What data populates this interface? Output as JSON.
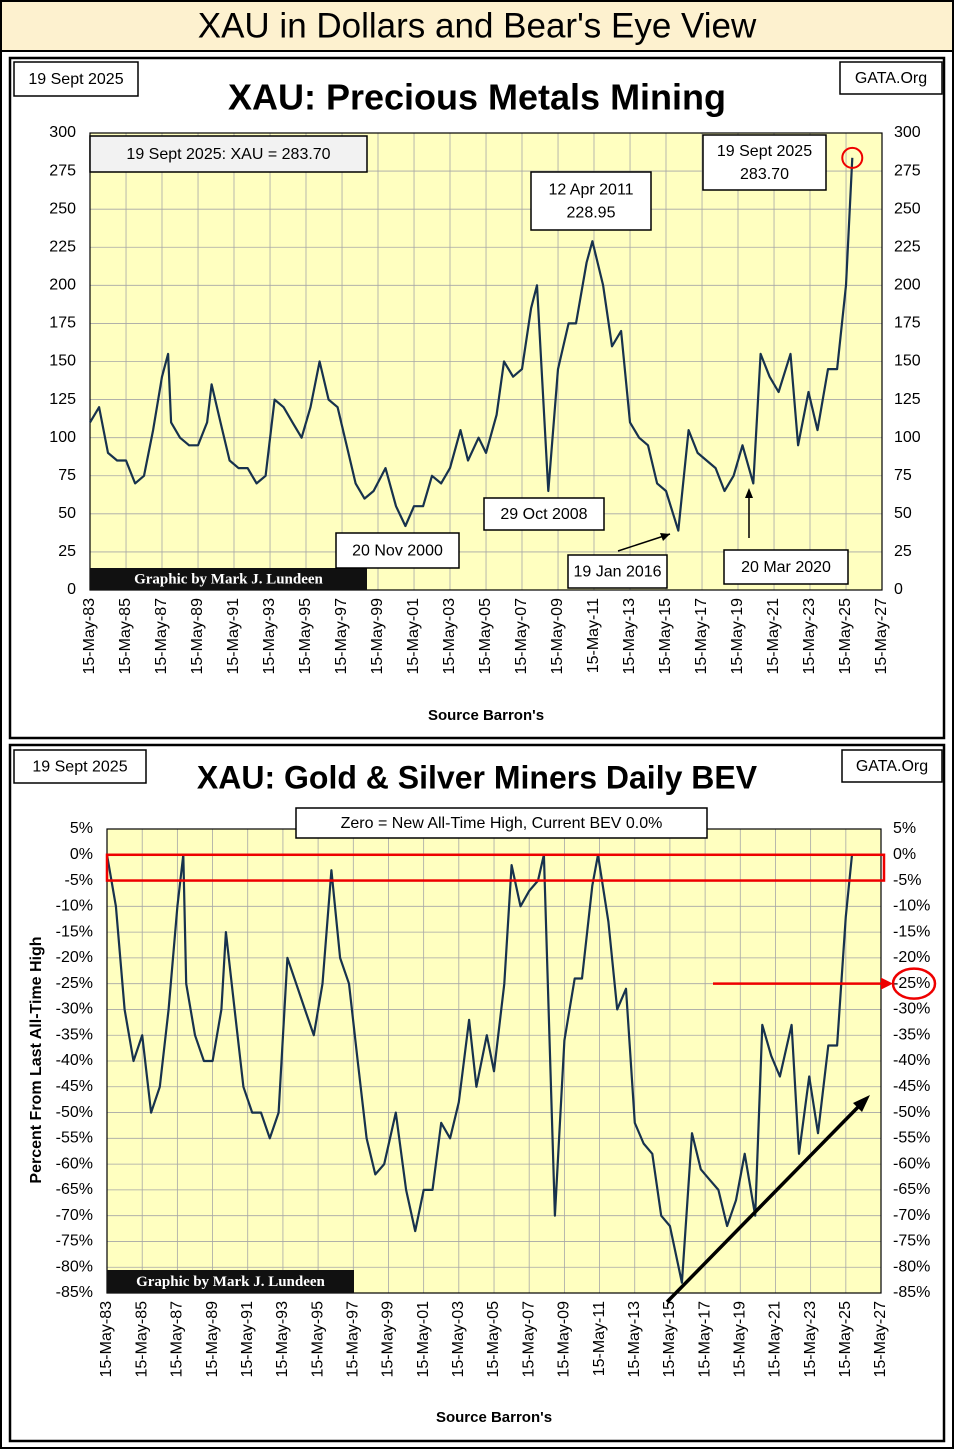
{
  "title": "XAU in Dollars and Bear's Eye View",
  "chart_data": [
    {
      "type": "line",
      "date": "19 Sept 2025",
      "site": "GATA.Org",
      "title": "XAU: Precious Metals Mining",
      "credit": "Graphic by Mark J. Lundeen",
      "x_label": "Source Barron's",
      "color": "#17324d",
      "grid": true,
      "annotations": [
        [
          "19 Sept 2025: XAU = 283.70"
        ],
        [
          "19 Sept 2025",
          "283.70"
        ],
        [
          "12 Apr 2011",
          "228.95"
        ],
        [
          "29 Oct 2008"
        ],
        [
          "20 Nov 2000"
        ],
        [
          "19 Jan 2016"
        ],
        [
          "20 Mar 2020"
        ]
      ],
      "xlim": [
        "1983-05-15",
        "2027-05-15"
      ],
      "xticks": [
        {
          "value": "1983-05-15",
          "label": "15-May-83"
        },
        {
          "value": "1985-05-15",
          "label": "15-May-85"
        },
        {
          "value": "1987-05-15",
          "label": "15-May-87"
        },
        {
          "value": "1989-05-15",
          "label": "15-May-89"
        },
        {
          "value": "1991-05-15",
          "label": "15-May-91"
        },
        {
          "value": "1993-05-15",
          "label": "15-May-93"
        },
        {
          "value": "1995-05-15",
          "label": "15-May-95"
        },
        {
          "value": "1997-05-15",
          "label": "15-May-97"
        },
        {
          "value": "1999-05-15",
          "label": "15-May-99"
        },
        {
          "value": "2001-05-15",
          "label": "15-May-01"
        },
        {
          "value": "2003-05-15",
          "label": "15-May-03"
        },
        {
          "value": "2005-05-15",
          "label": "15-May-05"
        },
        {
          "value": "2007-05-15",
          "label": "15-May-07"
        },
        {
          "value": "2009-05-15",
          "label": "15-May-09"
        },
        {
          "value": "2011-05-15",
          "label": "15-May-11"
        },
        {
          "value": "2013-05-15",
          "label": "15-May-13"
        },
        {
          "value": "2015-05-15",
          "label": "15-May-15"
        },
        {
          "value": "2017-05-15",
          "label": "15-May-17"
        },
        {
          "value": "2019-05-15",
          "label": "15-May-19"
        },
        {
          "value": "2021-05-15",
          "label": "15-May-21"
        },
        {
          "value": "2023-05-15",
          "label": "15-May-23"
        },
        {
          "value": "2025-05-15",
          "label": "15-May-25"
        },
        {
          "value": "2027-05-15",
          "label": "15-May-27"
        }
      ],
      "ylim": [
        0,
        300
      ],
      "yticks": [
        0,
        25,
        50,
        75,
        100,
        125,
        150,
        175,
        200,
        225,
        250,
        275,
        300
      ],
      "x": [
        "1983-05-15",
        "1983-11-15",
        "1984-05-15",
        "1984-11-15",
        "1985-05-15",
        "1985-11-15",
        "1986-05-15",
        "1986-11-15",
        "1987-05-15",
        "1987-09-15",
        "1987-11-15",
        "1988-05-15",
        "1988-11-15",
        "1989-05-15",
        "1989-11-15",
        "1990-02-15",
        "1990-08-15",
        "1991-02-15",
        "1991-08-15",
        "1992-02-15",
        "1992-08-15",
        "1993-02-15",
        "1993-08-15",
        "1994-02-15",
        "1994-08-15",
        "1995-02-15",
        "1995-08-15",
        "1996-02-15",
        "1996-08-15",
        "1997-02-15",
        "1997-08-15",
        "1998-02-15",
        "1998-08-15",
        "1999-02-15",
        "1999-10-15",
        "2000-05-15",
        "2000-11-20",
        "2001-05-15",
        "2001-11-15",
        "2002-05-15",
        "2002-11-15",
        "2003-05-15",
        "2003-12-15",
        "2004-05-15",
        "2004-12-15",
        "2005-05-15",
        "2005-12-15",
        "2006-05-15",
        "2006-11-15",
        "2007-05-15",
        "2007-11-15",
        "2008-03-15",
        "2008-10-29",
        "2009-05-15",
        "2009-12-15",
        "2010-05-15",
        "2010-12-15",
        "2011-04-12",
        "2011-11-15",
        "2012-05-15",
        "2012-11-15",
        "2013-05-15",
        "2013-11-15",
        "2014-05-15",
        "2014-11-15",
        "2015-05-15",
        "2016-01-19",
        "2016-08-15",
        "2017-02-15",
        "2017-08-15",
        "2018-02-15",
        "2018-08-15",
        "2019-02-15",
        "2019-08-15",
        "2020-03-20",
        "2020-08-15",
        "2021-02-15",
        "2021-08-15",
        "2022-04-15",
        "2022-09-15",
        "2023-04-15",
        "2023-10-15",
        "2024-05-15",
        "2024-11-15",
        "2025-05-15",
        "2025-09-19"
      ],
      "values": [
        110,
        120,
        90,
        85,
        85,
        70,
        75,
        105,
        140,
        155,
        110,
        100,
        95,
        95,
        110,
        135,
        110,
        85,
        80,
        80,
        70,
        75,
        125,
        120,
        110,
        100,
        120,
        150,
        125,
        120,
        95,
        70,
        60,
        65,
        80,
        55,
        42,
        55,
        55,
        75,
        70,
        80,
        105,
        85,
        100,
        90,
        115,
        150,
        140,
        145,
        185,
        200,
        65,
        145,
        175,
        175,
        215,
        228.95,
        200,
        160,
        170,
        110,
        100,
        95,
        70,
        65,
        39,
        105,
        90,
        85,
        80,
        65,
        75,
        95,
        70,
        155,
        140,
        130,
        155,
        95,
        130,
        105,
        145,
        145,
        200,
        283.7
      ]
    },
    {
      "type": "line",
      "date": "19 Sept 2025",
      "site": "GATA.Org",
      "title": "XAU: Gold & Silver Miners Daily BEV",
      "credit": "Graphic by Mark J. Lundeen",
      "x_label": "Source Barron's",
      "y_label": "Percent From Last All-Time High",
      "color": "#17324d",
      "grid": true,
      "annotations": [
        [
          "Zero = New All-Time High, Current BEV  0.0%"
        ]
      ],
      "xlim": [
        "1983-05-15",
        "2027-05-15"
      ],
      "xticks": [
        {
          "value": "1983-05-15",
          "label": "15-May-83"
        },
        {
          "value": "1985-05-15",
          "label": "15-May-85"
        },
        {
          "value": "1987-05-15",
          "label": "15-May-87"
        },
        {
          "value": "1989-05-15",
          "label": "15-May-89"
        },
        {
          "value": "1991-05-15",
          "label": "15-May-91"
        },
        {
          "value": "1993-05-15",
          "label": "15-May-93"
        },
        {
          "value": "1995-05-15",
          "label": "15-May-95"
        },
        {
          "value": "1997-05-15",
          "label": "15-May-97"
        },
        {
          "value": "1999-05-15",
          "label": "15-May-99"
        },
        {
          "value": "2001-05-15",
          "label": "15-May-01"
        },
        {
          "value": "2003-05-15",
          "label": "15-May-03"
        },
        {
          "value": "2005-05-15",
          "label": "15-May-05"
        },
        {
          "value": "2007-05-15",
          "label": "15-May-07"
        },
        {
          "value": "2009-05-15",
          "label": "15-May-09"
        },
        {
          "value": "2011-05-15",
          "label": "15-May-11"
        },
        {
          "value": "2013-05-15",
          "label": "15-May-13"
        },
        {
          "value": "2015-05-15",
          "label": "15-May-15"
        },
        {
          "value": "2017-05-15",
          "label": "15-May-17"
        },
        {
          "value": "2019-05-15",
          "label": "15-May-19"
        },
        {
          "value": "2021-05-15",
          "label": "15-May-21"
        },
        {
          "value": "2023-05-15",
          "label": "15-May-23"
        },
        {
          "value": "2025-05-15",
          "label": "15-May-25"
        },
        {
          "value": "2027-05-15",
          "label": "15-May-27"
        }
      ],
      "ylim": [
        -85,
        5
      ],
      "yticks": [
        {
          "value": 5,
          "label": "5%"
        },
        {
          "value": 0,
          "label": "0%"
        },
        {
          "value": -5,
          "label": "-5%"
        },
        {
          "value": -10,
          "label": "-10%"
        },
        {
          "value": -15,
          "label": "-15%"
        },
        {
          "value": -20,
          "label": "-20%"
        },
        {
          "value": -25,
          "label": "-25%"
        },
        {
          "value": -30,
          "label": "-30%"
        },
        {
          "value": -35,
          "label": "-35%"
        },
        {
          "value": -40,
          "label": "-40%"
        },
        {
          "value": -45,
          "label": "-45%"
        },
        {
          "value": -50,
          "label": "-50%"
        },
        {
          "value": -55,
          "label": "-55%"
        },
        {
          "value": -60,
          "label": "-60%"
        },
        {
          "value": -65,
          "label": "-65%"
        },
        {
          "value": -70,
          "label": "-70%"
        },
        {
          "value": -75,
          "label": "-75%"
        },
        {
          "value": -80,
          "label": "-80%"
        },
        {
          "value": -85,
          "label": "-85%"
        }
      ],
      "x": [
        "1983-05-15",
        "1983-11-15",
        "1984-05-15",
        "1984-11-15",
        "1985-05-15",
        "1985-11-15",
        "1986-05-15",
        "1986-11-15",
        "1987-05-15",
        "1987-09-15",
        "1987-11-15",
        "1988-05-15",
        "1988-11-15",
        "1989-05-15",
        "1989-11-15",
        "1990-02-15",
        "1990-08-15",
        "1991-02-15",
        "1991-08-15",
        "1992-02-15",
        "1992-08-15",
        "1993-02-15",
        "1993-08-15",
        "1994-02-15",
        "1994-08-15",
        "1995-02-15",
        "1995-08-15",
        "1996-02-15",
        "1996-08-15",
        "1997-02-15",
        "1997-08-15",
        "1998-02-15",
        "1998-08-15",
        "1999-02-15",
        "1999-10-15",
        "2000-05-15",
        "2000-11-20",
        "2001-05-15",
        "2001-11-15",
        "2002-05-15",
        "2002-11-15",
        "2003-05-15",
        "2003-12-15",
        "2004-05-15",
        "2004-12-15",
        "2005-05-15",
        "2005-12-15",
        "2006-05-15",
        "2006-11-15",
        "2007-05-15",
        "2007-11-15",
        "2008-03-15",
        "2008-10-29",
        "2009-05-15",
        "2009-12-15",
        "2010-05-15",
        "2010-12-15",
        "2011-04-12",
        "2011-11-15",
        "2012-05-15",
        "2012-11-15",
        "2013-05-15",
        "2013-11-15",
        "2014-05-15",
        "2014-11-15",
        "2015-05-15",
        "2016-01-19",
        "2016-08-15",
        "2017-02-15",
        "2017-08-15",
        "2018-02-15",
        "2018-08-15",
        "2019-02-15",
        "2019-08-15",
        "2020-03-20",
        "2020-08-15",
        "2021-02-15",
        "2021-08-15",
        "2022-04-15",
        "2022-09-15",
        "2023-04-15",
        "2023-10-15",
        "2024-05-15",
        "2024-11-15",
        "2025-05-15",
        "2025-09-19"
      ],
      "values": [
        0,
        -10,
        -30,
        -40,
        -35,
        -50,
        -45,
        -30,
        -10,
        0,
        -25,
        -35,
        -40,
        -40,
        -30,
        -15,
        -30,
        -45,
        -50,
        -50,
        -55,
        -50,
        -20,
        -25,
        -30,
        -35,
        -25,
        -3,
        -20,
        -25,
        -40,
        -55,
        -62,
        -60,
        -50,
        -65,
        -73,
        -65,
        -65,
        -52,
        -55,
        -48,
        -32,
        -45,
        -35,
        -42,
        -25,
        -2,
        -10,
        -7,
        -5,
        0,
        -70,
        -36,
        -24,
        -24,
        -6,
        0,
        -13,
        -30,
        -26,
        -52,
        -56,
        -58,
        -70,
        -72,
        -83,
        -54,
        -61,
        -63,
        -65,
        -72,
        -67,
        -58,
        -70,
        -33,
        -39,
        -43,
        -33,
        -58,
        -43,
        -54,
        -37,
        -37,
        -12,
        0
      ]
    }
  ]
}
